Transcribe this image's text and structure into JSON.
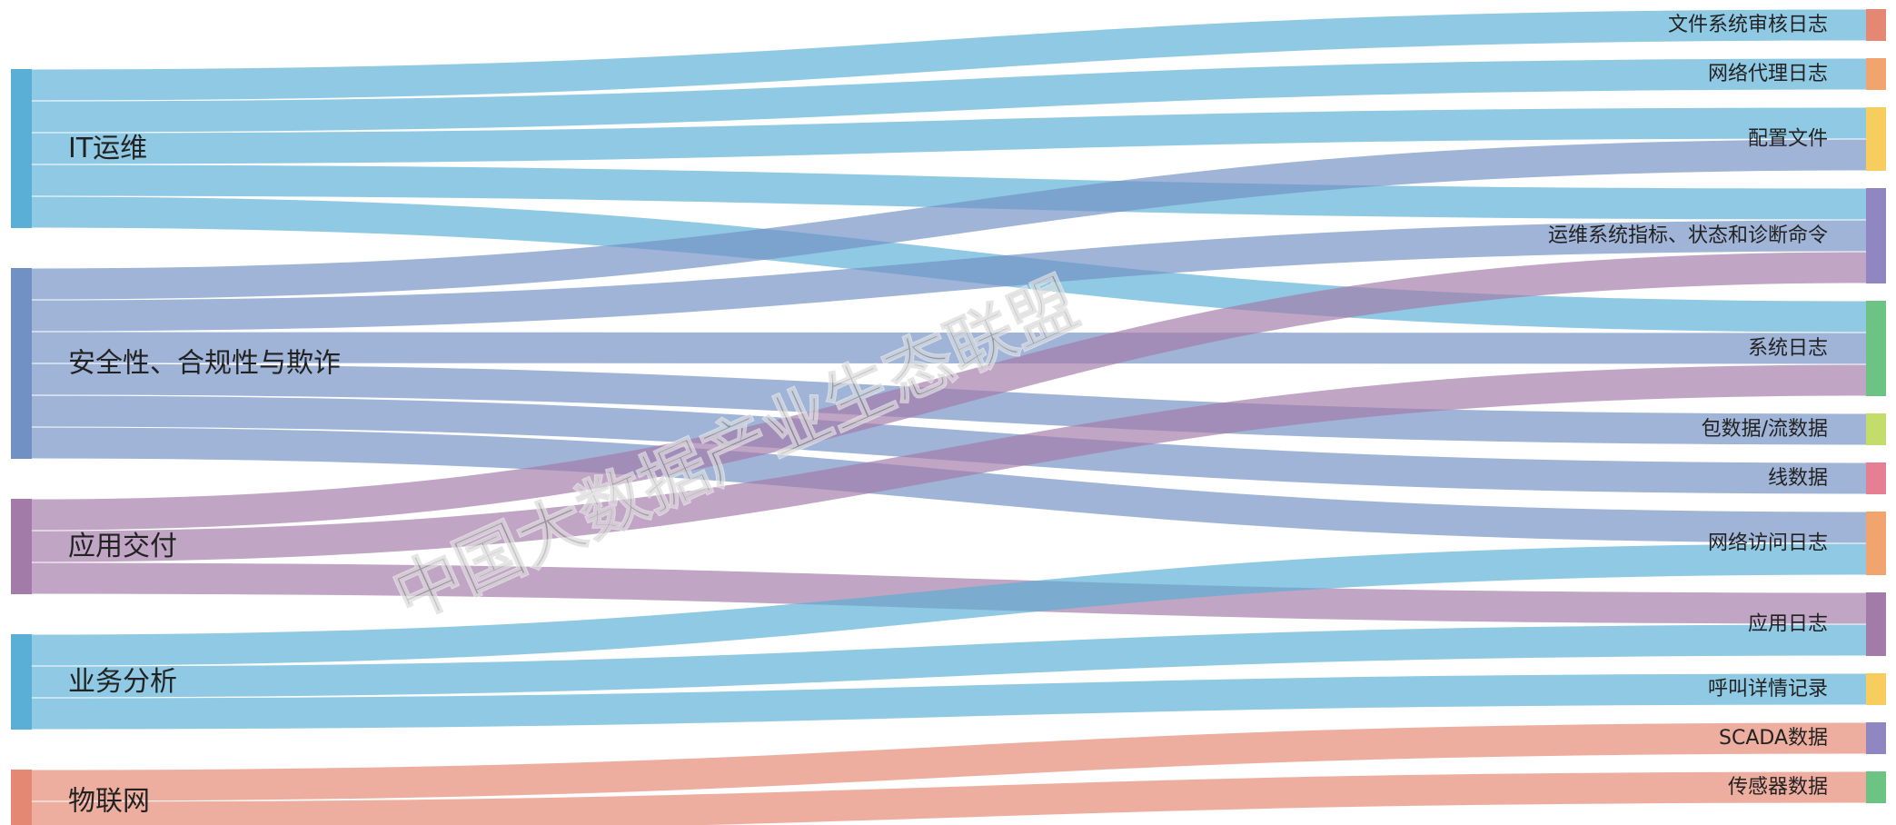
{
  "watermark": "中国大数据产业生态联盟",
  "chart_data": {
    "type": "sankey",
    "sources": [
      {
        "name": "IT运维",
        "color": "#5aafd6"
      },
      {
        "name": "安全性、合规性与欺诈",
        "color": "#7190c4"
      },
      {
        "name": "应用交付",
        "color": "#a27ba8"
      },
      {
        "name": "业务分析",
        "color": "#5aafd6"
      },
      {
        "name": "物联网",
        "color": "#e58873"
      }
    ],
    "targets": [
      {
        "name": "文件系统审核日志",
        "color": "#e58873"
      },
      {
        "name": "网络代理日志",
        "color": "#f2a46e"
      },
      {
        "name": "配置文件",
        "color": "#f7cd5e"
      },
      {
        "name": "运维系统指标、状态和诊断命令",
        "color": "#9087c2"
      },
      {
        "name": "系统日志",
        "color": "#6cc384"
      },
      {
        "name": "包数据/流数据",
        "color": "#c2dd6c"
      },
      {
        "name": "线数据",
        "color": "#e77f94"
      },
      {
        "name": "网络访问日志",
        "color": "#f2a46e"
      },
      {
        "name": "应用日志",
        "color": "#a27ba8"
      },
      {
        "name": "呼叫详情记录",
        "color": "#f7cd5e"
      },
      {
        "name": "SCADA数据",
        "color": "#9087c2"
      },
      {
        "name": "传感器数据",
        "color": "#6cc384"
      }
    ],
    "links": [
      {
        "source": "IT运维",
        "target": "文件系统审核日志",
        "value": 1
      },
      {
        "source": "IT运维",
        "target": "网络代理日志",
        "value": 1
      },
      {
        "source": "IT运维",
        "target": "配置文件",
        "value": 1
      },
      {
        "source": "IT运维",
        "target": "运维系统指标、状态和诊断命令",
        "value": 1
      },
      {
        "source": "IT运维",
        "target": "系统日志",
        "value": 1
      },
      {
        "source": "安全性、合规性与欺诈",
        "target": "配置文件",
        "value": 1
      },
      {
        "source": "安全性、合规性与欺诈",
        "target": "运维系统指标、状态和诊断命令",
        "value": 1
      },
      {
        "source": "安全性、合规性与欺诈",
        "target": "系统日志",
        "value": 1
      },
      {
        "source": "安全性、合规性与欺诈",
        "target": "包数据/流数据",
        "value": 1
      },
      {
        "source": "安全性、合规性与欺诈",
        "target": "线数据",
        "value": 1
      },
      {
        "source": "安全性、合规性与欺诈",
        "target": "网络访问日志",
        "value": 1
      },
      {
        "source": "应用交付",
        "target": "运维系统指标、状态和诊断命令",
        "value": 1
      },
      {
        "source": "应用交付",
        "target": "系统日志",
        "value": 1
      },
      {
        "source": "应用交付",
        "target": "应用日志",
        "value": 1
      },
      {
        "source": "业务分析",
        "target": "网络访问日志",
        "value": 1
      },
      {
        "source": "业务分析",
        "target": "应用日志",
        "value": 1
      },
      {
        "source": "业务分析",
        "target": "呼叫详情记录",
        "value": 1
      },
      {
        "source": "物联网",
        "target": "SCADA数据",
        "value": 1
      },
      {
        "source": "物联网",
        "target": "传感器数据",
        "value": 1
      }
    ]
  }
}
